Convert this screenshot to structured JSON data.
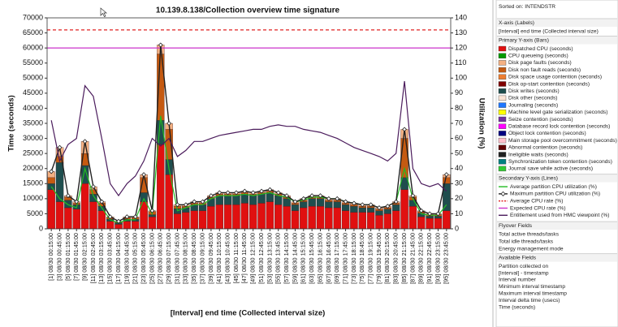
{
  "chart_data": {
    "type": "bar",
    "title": "10.139.8.138/Collection overview time signature",
    "x_label": "[Interval] end time (Collected interval size)",
    "y_label": "Time (seconds)",
    "y2_label": "Utilization (%)",
    "categories": [
      "[1] 08/30 00:15:00",
      "[3] 08/30 00:45:00",
      "[5] 08/30 01:15:00",
      "[7] 08/30 01:45:00",
      "[9] 08/30 02:15:00",
      "[11] 08/30 02:45:00",
      "[13] 08/30 03:15:00",
      "[15] 08/30 03:45:00",
      "[17] 08/30 04:15:00",
      "[19] 08/30 04:45:00",
      "[21] 08/30 05:15:00",
      "[23] 08/30 05:45:00",
      "[25] 08/30 06:15:00",
      "[27] 08/30 06:45:00",
      "[29] 08/30 07:15:00",
      "[31] 08/30 07:45:00",
      "[33] 08/30 08:15:00",
      "[35] 08/30 08:45:00",
      "[37] 08/30 09:15:00",
      "[39] 08/30 09:45:00",
      "[41] 08/30 10:15:00",
      "[43] 08/30 10:45:00",
      "[45] 08/30 11:15:00",
      "[47] 08/30 11:45:00",
      "[49] 08/30 12:15:00",
      "[51] 08/30 12:45:00",
      "[53] 08/30 13:15:00",
      "[55] 08/30 13:45:00",
      "[57] 08/30 14:15:00",
      "[59] 08/30 14:45:00",
      "[61] 08/30 15:15:00",
      "[63] 08/30 15:45:00",
      "[65] 08/30 16:15:00",
      "[67] 08/30 16:45:00",
      "[69] 08/30 17:15:00",
      "[71] 08/30 17:45:00",
      "[73] 08/30 18:15:00",
      "[75] 08/30 18:45:00",
      "[77] 08/30 19:15:00",
      "[79] 08/30 19:45:00",
      "[81] 08/30 20:15:00",
      "[83] 08/30 20:45:00",
      "[85] 08/30 21:15:00",
      "[87] 08/30 21:45:00",
      "[89] 08/30 22:15:00",
      "[91] 08/30 22:45:00",
      "[93] 08/30 23:15:00",
      "[95] 08/30 23:45:00"
    ],
    "series": [
      {
        "name": "Dispatched CPU (seconds)",
        "color": "#e01010",
        "values": [
          13000,
          9000,
          7000,
          6500,
          15000,
          9000,
          6000,
          2500,
          1500,
          2500,
          2500,
          9000,
          4000,
          28000,
          18000,
          5000,
          5500,
          6000,
          6000,
          7500,
          8000,
          8000,
          8000,
          8500,
          8000,
          8500,
          9000,
          8000,
          7500,
          6000,
          7000,
          7500,
          7500,
          7000,
          7000,
          6000,
          5500,
          5500,
          5500,
          4500,
          5000,
          6000,
          13000,
          7500,
          4000,
          3500,
          3500,
          6000
        ]
      },
      {
        "name": "Disk writes (seconds)",
        "color": "#1f4e4e",
        "values": [
          2000,
          13000,
          2500,
          1500,
          6000,
          2500,
          1500,
          700,
          500,
          700,
          700,
          3000,
          700,
          8000,
          5000,
          1700,
          1500,
          2000,
          2000,
          2500,
          3000,
          3000,
          3000,
          3000,
          3000,
          3000,
          3000,
          3000,
          2500,
          2000,
          2000,
          2500,
          2500,
          2000,
          2000,
          2000,
          2000,
          1500,
          1500,
          1500,
          1500,
          2000,
          4000,
          2000,
          1200,
          700,
          700,
          9000
        ]
      },
      {
        "name": "Disk non fault reads (seconds)",
        "color": "#c55a11",
        "values": [
          2000,
          2000,
          1000,
          500,
          4000,
          1500,
          1000,
          500,
          300,
          500,
          500,
          5000,
          1000,
          22000,
          10000,
          800,
          500,
          500,
          500,
          500,
          500,
          500,
          500,
          500,
          500,
          500,
          500,
          500,
          500,
          500,
          500,
          500,
          500,
          500,
          500,
          500,
          500,
          500,
          500,
          500,
          500,
          500,
          13000,
          1000,
          500,
          500,
          500,
          2000
        ]
      },
      {
        "name": "Disk page faults (seconds)",
        "color": "#f4b183",
        "values": [
          2000,
          3000,
          500,
          500,
          4000,
          1000,
          500,
          300,
          200,
          300,
          300,
          1000,
          300,
          3000,
          2000,
          500,
          500,
          500,
          500,
          500,
          500,
          500,
          500,
          500,
          500,
          500,
          500,
          500,
          500,
          500,
          500,
          500,
          500,
          500,
          500,
          500,
          500,
          500,
          500,
          500,
          500,
          500,
          3000,
          500,
          300,
          300,
          300,
          1000
        ]
      },
      {
        "name": "Average partition CPU utilization (%)",
        "color": "#22bb22",
        "axis": "y2",
        "values": [
          28,
          20,
          16,
          14,
          40,
          22,
          14,
          6,
          4,
          6,
          6,
          20,
          10,
          75,
          40,
          12,
          14,
          16,
          16,
          20,
          22,
          22,
          22,
          23,
          22,
          23,
          24,
          22,
          21,
          18,
          19,
          21,
          21,
          20,
          20,
          18,
          17,
          16,
          16,
          14,
          15,
          18,
          40,
          20,
          10,
          9,
          9,
          16
        ]
      },
      {
        "name": "Maximum partition CPU utilization (%)",
        "color": "#222222",
        "axis": "y2",
        "marker": "diamond",
        "values": [
          38,
          54,
          22,
          18,
          58,
          28,
          18,
          8,
          5,
          8,
          8,
          36,
          12,
          122,
          70,
          16,
          16,
          18,
          18,
          22,
          24,
          24,
          24,
          25,
          24,
          25,
          26,
          24,
          22,
          18,
          20,
          22,
          22,
          20,
          20,
          18,
          17,
          16,
          16,
          14,
          15,
          18,
          66,
          22,
          12,
          10,
          10,
          36
        ]
      },
      {
        "name": "Average CPU rate (%)",
        "color": "#e02020",
        "axis": "y2",
        "dash": true,
        "value": 132
      },
      {
        "name": "Expected CPU rate (%)",
        "color": "#cc33cc",
        "axis": "y2",
        "value": 120
      },
      {
        "name": "Entitlement used from HMC viewpoint (%)",
        "color": "#4b1c5c",
        "axis": "y2",
        "values": [
          72,
          45,
          56,
          60,
          95,
          88,
          60,
          30,
          22,
          30,
          35,
          45,
          60,
          55,
          60,
          48,
          52,
          58,
          58,
          60,
          62,
          63,
          64,
          65,
          66,
          66,
          68,
          69,
          68,
          68,
          66,
          65,
          64,
          62,
          60,
          57,
          54,
          52,
          50,
          48,
          45,
          50,
          98,
          40,
          30,
          28,
          30,
          25
        ]
      }
    ],
    "ylim": [
      0,
      70000
    ],
    "yticks": [
      0,
      5000,
      10000,
      15000,
      20000,
      25000,
      30000,
      35000,
      40000,
      45000,
      50000,
      55000,
      60000,
      65000,
      70000
    ],
    "y2lim": [
      0,
      140
    ],
    "y2ticks": [
      0,
      10,
      20,
      30,
      40,
      50,
      60,
      70,
      80,
      90,
      100,
      110,
      120,
      130,
      140
    ],
    "grid": false
  },
  "panel": {
    "sorted": "Sorted on: INTENDSTR",
    "x_header": "X-axis (Labels)",
    "x_field": "[Interval] end time (Collected interval size)",
    "primary_header": "Primary Y-axis (Bars)",
    "primary_other": [
      {
        "name": "CPU queueing (seconds)",
        "color": "#009900"
      },
      {
        "name": "Disk space usage contention (seconds)",
        "color": "#ed7d31"
      },
      {
        "name": "Disk op-start contention (seconds)",
        "color": "#7f0000"
      },
      {
        "name": "Disk other (seconds)",
        "color": "#fbe5d6"
      },
      {
        "name": "Journaling (seconds)",
        "color": "#1f77ff"
      },
      {
        "name": "Machine level gate serialization (seconds)",
        "color": "#ffff00"
      },
      {
        "name": "Seize contention (seconds)",
        "color": "#7030a0"
      },
      {
        "name": "Database record lock contention (seconds)",
        "color": "#ff00ff"
      },
      {
        "name": "Object lock contention (seconds)",
        "color": "#000080"
      },
      {
        "name": "Main storage pool overcommitment (seconds)",
        "color": "#ffc0cb"
      },
      {
        "name": "Abnormal contention (seconds)",
        "color": "#600000"
      },
      {
        "name": "Ineligible waits (seconds)",
        "color": "#202020"
      },
      {
        "name": "Synchronization token contention (seconds)",
        "color": "#008080"
      },
      {
        "name": "Journal save while active (seconds)",
        "color": "#33cc33"
      }
    ],
    "secondary_header": "Secondary Y-axis (Lines)",
    "flyover_header": "Flyover Fields",
    "flyover": [
      "Total active threads/tasks",
      "Total idle threads/tasks",
      "Energy management mode"
    ],
    "available_header": "Available Fields",
    "available": [
      "Partition collected on",
      "[Interval] - timestamp",
      "Interval number",
      "Minimum interval timestamp",
      "Maximum interval timestamp",
      "Interval delta time (usecs)",
      "Time (seconds)"
    ]
  }
}
